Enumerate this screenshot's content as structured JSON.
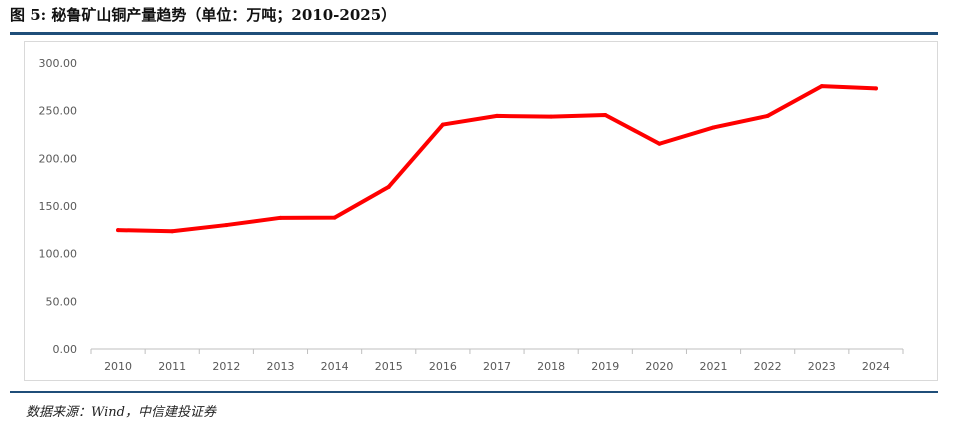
{
  "figure": {
    "title": "图 5: 秘鲁矿山铜产量趋势（单位：万吨；2010-2025）",
    "source": "数据来源：Wind，中信建投证券"
  },
  "colors": {
    "line": "#ff0000",
    "rule": "#1f4e79",
    "axis": "#bfbfbf",
    "tick_text": "#595959"
  },
  "chart_data": {
    "type": "line",
    "title": "",
    "xlabel": "",
    "ylabel": "",
    "x": [
      "2010",
      "2011",
      "2012",
      "2013",
      "2014",
      "2015",
      "2016",
      "2017",
      "2018",
      "2019",
      "2020",
      "2021",
      "2022",
      "2023",
      "2024"
    ],
    "series": [
      {
        "values": [
          124.7,
          123.5,
          130.0,
          137.6,
          137.8,
          170.1,
          235.4,
          244.5,
          243.7,
          245.5,
          215.3,
          232.4,
          244.5,
          275.8,
          273.4
        ]
      }
    ],
    "ylim": [
      0,
      300
    ],
    "yticks": [
      "0.00",
      "50.00",
      "100.00",
      "150.00",
      "200.00",
      "250.00",
      "300.00"
    ],
    "grid": false,
    "legend": "none"
  }
}
